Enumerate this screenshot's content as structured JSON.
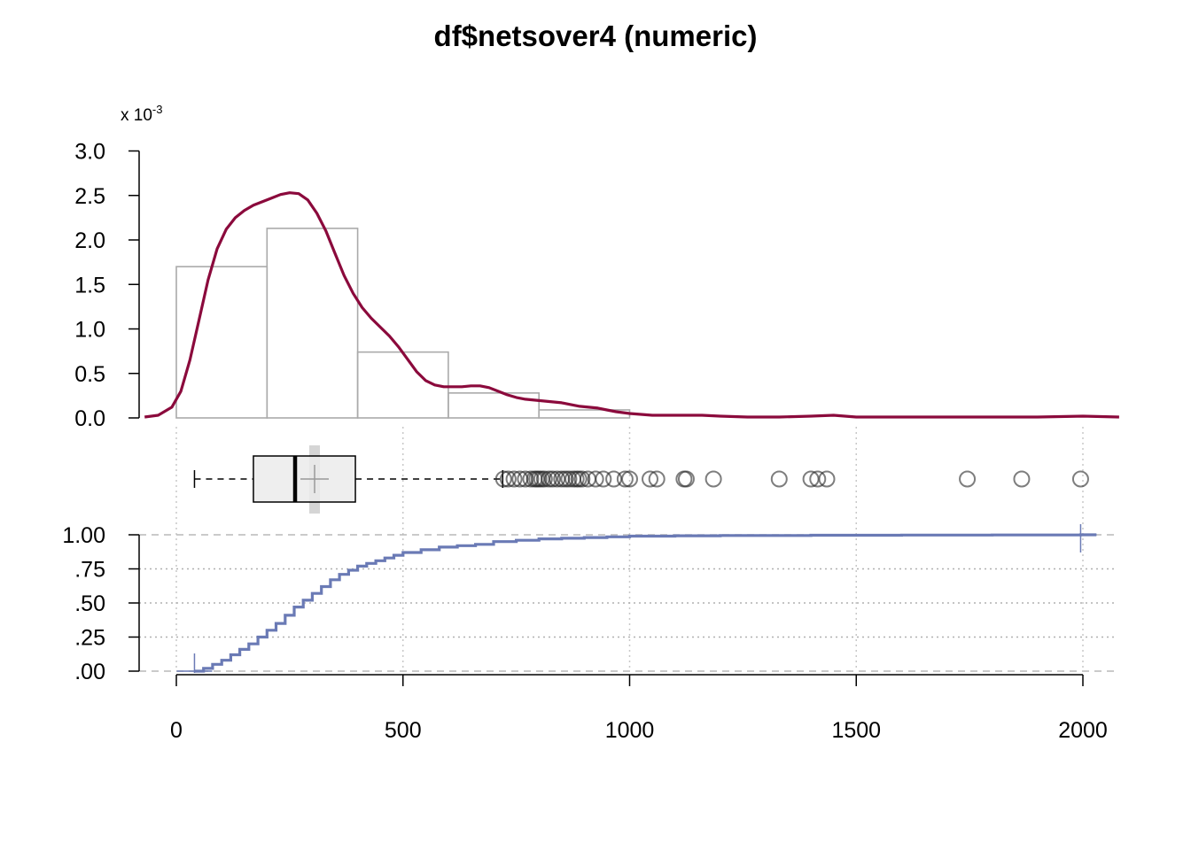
{
  "chart_data": {
    "type": "histogram+density+boxplot+ecdf",
    "title": "df$netsover4 (numeric)",
    "density_axis": {
      "multiplier_label": "x 10",
      "multiplier_exponent": "-3",
      "ticks": [
        "0.0",
        "0.5",
        "1.0",
        "1.5",
        "2.0",
        "2.5",
        "3.0"
      ],
      "ylim": [
        0,
        3.0
      ]
    },
    "x_axis": {
      "ticks": [
        0,
        500,
        1000,
        1500,
        2000
      ],
      "tick_labels": [
        "0",
        "500",
        "1000",
        "1500",
        "2000"
      ],
      "xlim": [
        -80,
        2080
      ]
    },
    "histogram": {
      "bin_edges": [
        0,
        200,
        400,
        600,
        800,
        1000
      ],
      "density_x1e3": [
        1.7,
        2.13,
        0.74,
        0.28,
        0.09
      ],
      "color": "#aaaaaa"
    },
    "density_curve": {
      "color": "#8b0a3c",
      "x": [
        -70,
        -40,
        -10,
        10,
        30,
        50,
        70,
        90,
        110,
        130,
        150,
        170,
        190,
        210,
        230,
        250,
        270,
        290,
        310,
        330,
        350,
        370,
        390,
        410,
        430,
        450,
        470,
        490,
        510,
        530,
        550,
        570,
        590,
        610,
        630,
        650,
        670,
        690,
        710,
        730,
        750,
        770,
        790,
        810,
        830,
        850,
        870,
        890,
        910,
        930,
        950,
        970,
        1000,
        1050,
        1100,
        1130,
        1160,
        1200,
        1260,
        1330,
        1400,
        1450,
        1500,
        1600,
        1700,
        1800,
        1900,
        2000,
        2080
      ],
      "y_x1e3": [
        0.01,
        0.03,
        0.12,
        0.3,
        0.65,
        1.1,
        1.55,
        1.9,
        2.12,
        2.25,
        2.33,
        2.39,
        2.43,
        2.47,
        2.51,
        2.53,
        2.52,
        2.45,
        2.3,
        2.1,
        1.85,
        1.6,
        1.4,
        1.24,
        1.12,
        1.02,
        0.92,
        0.8,
        0.66,
        0.52,
        0.42,
        0.37,
        0.35,
        0.35,
        0.35,
        0.36,
        0.36,
        0.34,
        0.3,
        0.26,
        0.23,
        0.21,
        0.2,
        0.19,
        0.18,
        0.17,
        0.15,
        0.13,
        0.12,
        0.11,
        0.09,
        0.07,
        0.05,
        0.03,
        0.03,
        0.03,
        0.03,
        0.02,
        0.01,
        0.01,
        0.02,
        0.03,
        0.01,
        0.01,
        0.01,
        0.01,
        0.01,
        0.02,
        0.01
      ]
    },
    "boxplot": {
      "whisker_low": 40,
      "q1": 170,
      "median": 262,
      "q3": 395,
      "whisker_high": 720,
      "mean": 305,
      "outliers": [
        722,
        732,
        745,
        758,
        770,
        782,
        790,
        795,
        800,
        806,
        812,
        822,
        830,
        840,
        850,
        858,
        866,
        875,
        882,
        888,
        895,
        908,
        925,
        942,
        965,
        990,
        1000,
        1045,
        1060,
        1120,
        1125,
        1185,
        1330,
        1400,
        1415,
        1435,
        1745,
        1865,
        1995
      ]
    },
    "ecdf": {
      "color": "#6a7ab5",
      "ticks": [
        "1.00",
        ".75",
        ".50",
        ".25",
        ".00"
      ],
      "tick_values": [
        1.0,
        0.75,
        0.5,
        0.25,
        0.0
      ],
      "x": [
        40,
        60,
        80,
        100,
        120,
        140,
        160,
        180,
        200,
        220,
        240,
        260,
        280,
        300,
        320,
        340,
        360,
        380,
        400,
        420,
        440,
        460,
        480,
        500,
        540,
        580,
        620,
        660,
        700,
        750,
        800,
        850,
        900,
        950,
        1000,
        1100,
        1200,
        1400,
        1600,
        1800,
        1995,
        2030
      ],
      "y": [
        0.0,
        0.02,
        0.05,
        0.08,
        0.12,
        0.16,
        0.2,
        0.25,
        0.3,
        0.35,
        0.41,
        0.47,
        0.52,
        0.57,
        0.62,
        0.67,
        0.71,
        0.74,
        0.77,
        0.79,
        0.81,
        0.83,
        0.85,
        0.87,
        0.89,
        0.91,
        0.92,
        0.93,
        0.95,
        0.96,
        0.97,
        0.975,
        0.98,
        0.985,
        0.99,
        0.993,
        0.995,
        0.997,
        0.998,
        0.999,
        1.0,
        1.0
      ]
    }
  }
}
